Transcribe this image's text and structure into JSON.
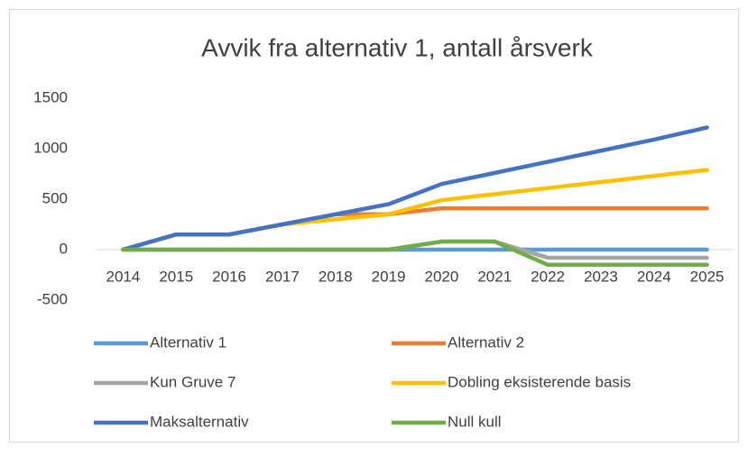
{
  "chart_data": {
    "type": "line",
    "title": "Avvik fra alternativ 1, antall årsverk",
    "categories": [
      "2014",
      "2015",
      "2016",
      "2017",
      "2018",
      "2019",
      "2020",
      "2021",
      "2022",
      "2023",
      "2024",
      "2025"
    ],
    "series": [
      {
        "name": "Alternativ 1",
        "color": "#5b9bd5",
        "values": [
          0,
          0,
          0,
          0,
          0,
          0,
          0,
          0,
          0,
          0,
          0,
          0
        ]
      },
      {
        "name": "Alternativ 2",
        "color": "#ed7d31",
        "values": [
          0,
          150,
          150,
          250,
          350,
          350,
          410,
          410,
          410,
          410,
          410,
          410
        ]
      },
      {
        "name": "Kun Gruve 7",
        "color": "#a5a5a5",
        "values": [
          0,
          0,
          0,
          0,
          0,
          0,
          80,
          80,
          -80,
          -80,
          -80,
          -80
        ]
      },
      {
        "name": "Dobling eksisterende basis",
        "color": "#ffc000",
        "values": [
          0,
          150,
          150,
          250,
          300,
          350,
          490,
          550,
          610,
          670,
          730,
          790
        ]
      },
      {
        "name": "Maksalternativ",
        "color": "#4472c4",
        "values": [
          0,
          150,
          150,
          250,
          350,
          450,
          650,
          760,
          870,
          980,
          1090,
          1210
        ]
      },
      {
        "name": "Null kull",
        "color": "#70ad47",
        "values": [
          0,
          0,
          0,
          0,
          0,
          0,
          80,
          80,
          -150,
          -150,
          -150,
          -150
        ]
      }
    ],
    "ylim": [
      -500,
      1500
    ],
    "yticks": [
      -500,
      0,
      500,
      1000,
      1500
    ],
    "grid": false
  }
}
